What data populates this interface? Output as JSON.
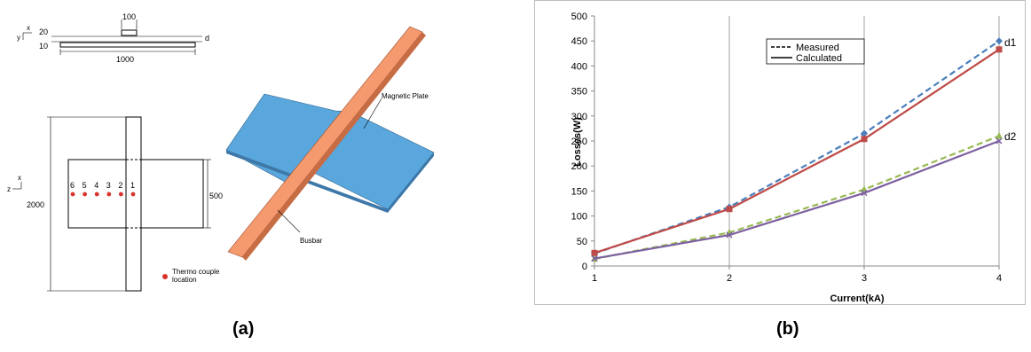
{
  "panel_a": {
    "caption": "(a)",
    "top_view": {
      "dim_width": "1000",
      "dim_pad": "100",
      "dim_20": "20",
      "dim_10": "10",
      "d_label": "d",
      "axis_x": "x",
      "axis_y": "y"
    },
    "plan_view": {
      "dim_height": "2000",
      "dim_plate": "500",
      "axis_x": "x",
      "axis_z": "z",
      "points": [
        "6",
        "5",
        "4",
        "3",
        "2",
        "1"
      ],
      "legend_text_1": "Thermo couple",
      "legend_text_2": "location",
      "point_color": "#d9342b"
    },
    "iso_view": {
      "plate_label": "Magnetic Plate",
      "busbar_label": "Busbar",
      "plate_color": "#5aa7dd",
      "busbar_color": "#f59a6e"
    }
  },
  "panel_b": {
    "caption": "(b)"
  },
  "chart_data": {
    "type": "line",
    "title": "",
    "xlabel": "Current(kA)",
    "ylabel": "Losses(W)",
    "x": [
      1,
      2,
      3,
      4
    ],
    "xticks": [
      "1",
      "2",
      "3",
      "4"
    ],
    "ylim": [
      0,
      500
    ],
    "yticks": [
      "0",
      "50",
      "100",
      "150",
      "200",
      "250",
      "300",
      "350",
      "400",
      "450",
      "500"
    ],
    "grid": "vertical",
    "legend_position": "top-center",
    "legend": [
      {
        "label": "Measured",
        "style": "dashed"
      },
      {
        "label": "Calculated",
        "style": "solid"
      }
    ],
    "series": [
      {
        "group": "d1",
        "style": "dashed",
        "color": "#4a7ebb",
        "marker": "diamond",
        "values": [
          25,
          118,
          265,
          450
        ]
      },
      {
        "group": "d1",
        "style": "solid",
        "color": "#be4b48",
        "marker": "square",
        "values": [
          26,
          114,
          254,
          433
        ]
      },
      {
        "group": "d2",
        "style": "dashed",
        "color": "#98b954",
        "marker": "triangle",
        "values": [
          14,
          67,
          153,
          260
        ]
      },
      {
        "group": "d2",
        "style": "solid",
        "color": "#7d60a0",
        "marker": "x",
        "values": [
          15,
          62,
          146,
          250
        ]
      }
    ],
    "annotations": [
      "d1",
      "d2"
    ]
  }
}
